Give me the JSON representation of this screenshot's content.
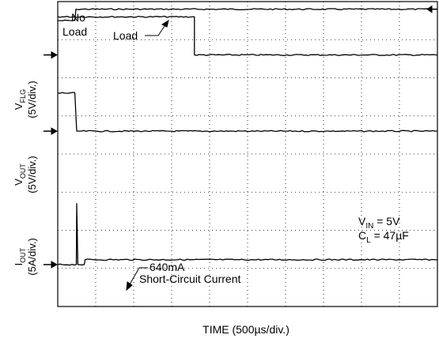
{
  "chart_data": {
    "type": "line",
    "title": "",
    "xlabel": "TIME (500µs/div.)",
    "x_divisions": 10,
    "y_divisions": 8,
    "grid": true,
    "channels": [
      {
        "name": "V_FLG",
        "ylabel_main": "V",
        "ylabel_sub": "FLG",
        "ylabel_scale": "(5V/div.)",
        "zero_div": 1.4,
        "points": [
          [
            0.0,
            1.0
          ],
          [
            3.6,
            1.0
          ],
          [
            3.6,
            0.0
          ],
          [
            10.0,
            0.0
          ]
        ]
      },
      {
        "name": "V_OUT",
        "ylabel_main": "V",
        "ylabel_sub": "OUT",
        "ylabel_scale": "(5V/div.)",
        "zero_div": 3.4,
        "points": [
          [
            0.0,
            1.0
          ],
          [
            0.45,
            1.0
          ],
          [
            0.5,
            0.0
          ],
          [
            10.0,
            0.0
          ]
        ]
      },
      {
        "name": "I_OUT",
        "ylabel_main": "I",
        "ylabel_sub": "OUT",
        "ylabel_scale": "(5A/div.)",
        "zero_div": 6.9,
        "points": [
          [
            0.0,
            0.0
          ],
          [
            0.49,
            0.0
          ],
          [
            0.5,
            1.6
          ],
          [
            0.53,
            0.0
          ],
          [
            0.7,
            0.0
          ],
          [
            0.72,
            0.128
          ],
          [
            10.0,
            0.128
          ]
        ]
      }
    ],
    "load_trace": {
      "name": "Load",
      "points": [
        [
          0.0,
          0.5
        ],
        [
          0.45,
          0.5
        ],
        [
          0.48,
          0.8
        ],
        [
          10.0,
          0.8
        ]
      ]
    },
    "annotations": {
      "no_load_line1": "No",
      "no_load_line2": "Load",
      "load": "Load",
      "short_value": "640mA",
      "short_label": "Short-Circuit Current",
      "vin_main": "V",
      "vin_sub": "IN",
      "vin_value": " = 5V",
      "cl_main": "C",
      "cl_sub": "L",
      "cl_value": " = 47µF"
    }
  }
}
